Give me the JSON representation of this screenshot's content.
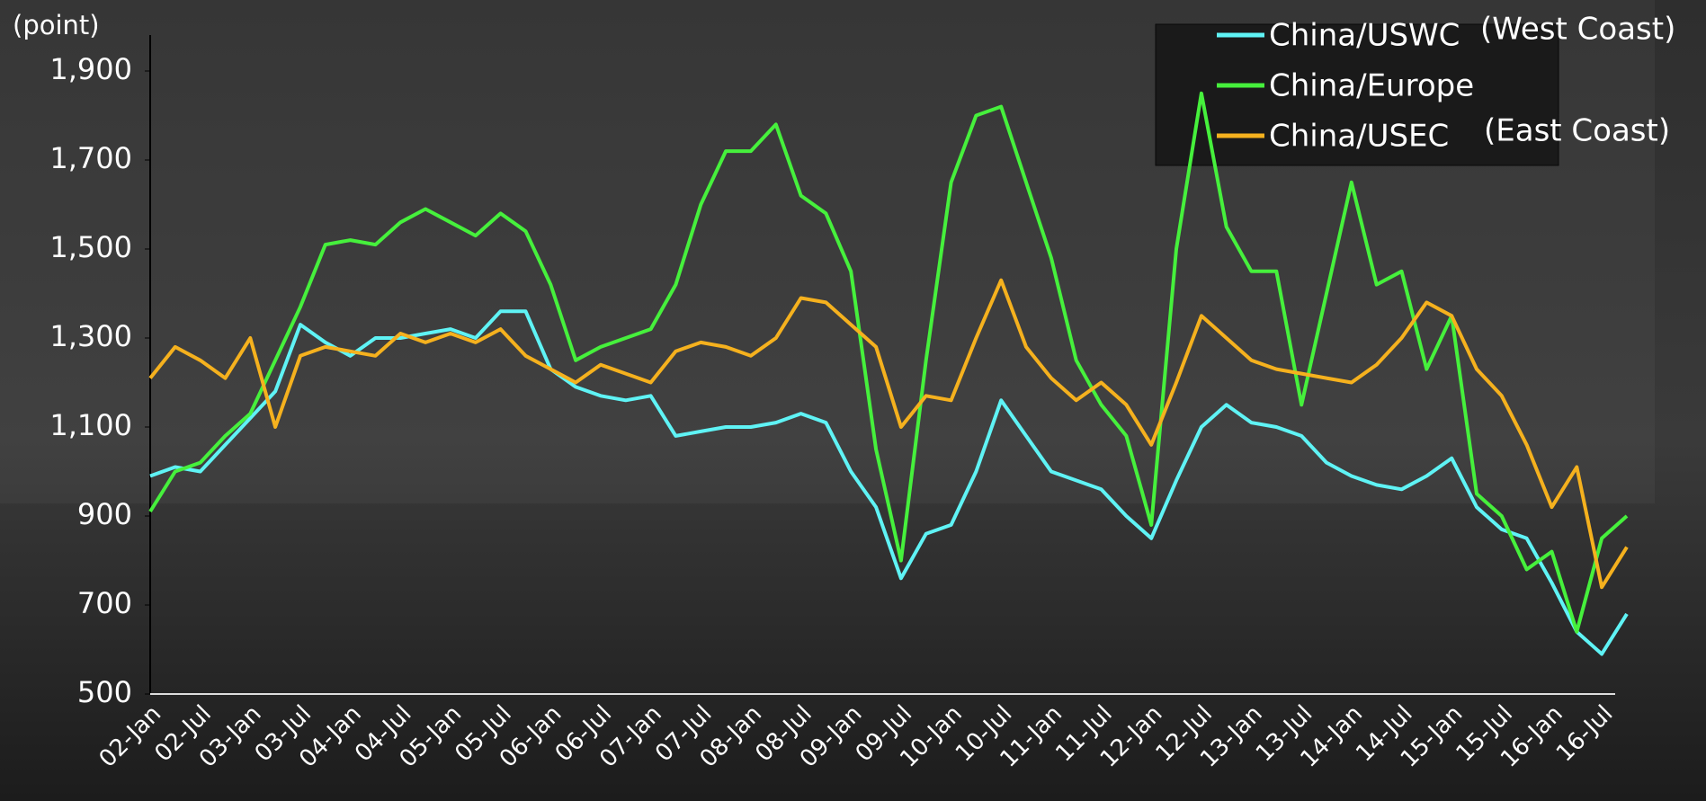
{
  "chart_data": {
    "type": "line",
    "y_label": "(point)",
    "annotations": [
      "(West Coast)",
      "(East Coast)"
    ],
    "categories": [
      "02-Jan",
      null,
      "02-Jul",
      null,
      "03-Jan",
      null,
      "03-Jul",
      null,
      "04-Jan",
      null,
      "04-Jul",
      null,
      "05-Jan",
      null,
      "05-Jul",
      null,
      "06-Jan",
      null,
      "06-Jul",
      null,
      "07-Jan",
      null,
      "07-Jul",
      null,
      "08-Jan",
      null,
      "08-Jul",
      null,
      "09-Jan",
      null,
      "09-Jul",
      null,
      "10-Jan",
      null,
      "10-Jul",
      null,
      "11-Jan",
      null,
      "11-Jul",
      null,
      "12-Jan",
      null,
      "12-Jul",
      null,
      "13-Jan",
      null,
      "13-Jul",
      null,
      "14-Jan",
      null,
      "14-Jul",
      null,
      "15-Jan",
      null,
      "15-Jul",
      null,
      "16-Jan",
      null,
      "16-Jul",
      null
    ],
    "series": [
      {
        "name": "China/USWC",
        "color": "#5ff3f5",
        "values": [
          990,
          1010,
          1000,
          1060,
          1120,
          1180,
          1330,
          1290,
          1260,
          1300,
          1300,
          1310,
          1320,
          1300,
          1360,
          1360,
          1230,
          1190,
          1170,
          1160,
          1170,
          1080,
          1090,
          1100,
          1100,
          1110,
          1130,
          1110,
          1000,
          920,
          760,
          860,
          880,
          1000,
          1160,
          1080,
          1000,
          980,
          960,
          900,
          850,
          980,
          1100,
          1150,
          1110,
          1100,
          1080,
          1020,
          990,
          970,
          960,
          990,
          1030,
          920,
          870,
          850,
          750,
          640,
          590,
          680
        ]
      },
      {
        "name": "China/Europe",
        "color": "#46f03c",
        "values": [
          910,
          1000,
          1020,
          1080,
          1130,
          1250,
          1370,
          1510,
          1520,
          1510,
          1560,
          1590,
          1560,
          1530,
          1580,
          1540,
          1420,
          1250,
          1280,
          1300,
          1320,
          1420,
          1600,
          1720,
          1720,
          1780,
          1620,
          1580,
          1450,
          1050,
          800,
          1250,
          1650,
          1800,
          1820,
          1650,
          1480,
          1250,
          1150,
          1080,
          880,
          1500,
          1850,
          1550,
          1450,
          1450,
          1150,
          1400,
          1650,
          1420,
          1450,
          1230,
          1350,
          950,
          900,
          780,
          820,
          640,
          850,
          900
        ]
      },
      {
        "name": "China/USEC",
        "color": "#f5b11e",
        "values": [
          1210,
          1280,
          1250,
          1210,
          1300,
          1100,
          1260,
          1280,
          1270,
          1260,
          1310,
          1290,
          1310,
          1290,
          1320,
          1260,
          1230,
          1200,
          1240,
          1220,
          1200,
          1270,
          1290,
          1280,
          1260,
          1300,
          1390,
          1380,
          1330,
          1280,
          1100,
          1170,
          1160,
          1300,
          1430,
          1280,
          1210,
          1160,
          1200,
          1150,
          1060,
          1200,
          1350,
          1300,
          1250,
          1230,
          1220,
          1210,
          1200,
          1240,
          1300,
          1380,
          1350,
          1230,
          1170,
          1060,
          920,
          1010,
          740,
          830
        ]
      }
    ],
    "ylim": [
      500,
      1900
    ],
    "yticks": [
      500,
      700,
      900,
      {
        "value": 1100,
        "label": "1,100"
      },
      {
        "value": 1300,
        "label": "1,300"
      },
      {
        "value": 1500,
        "label": "1,500"
      },
      {
        "value": 1700,
        "label": "1,700"
      },
      {
        "value": 1900,
        "label": "1,900"
      }
    ]
  }
}
